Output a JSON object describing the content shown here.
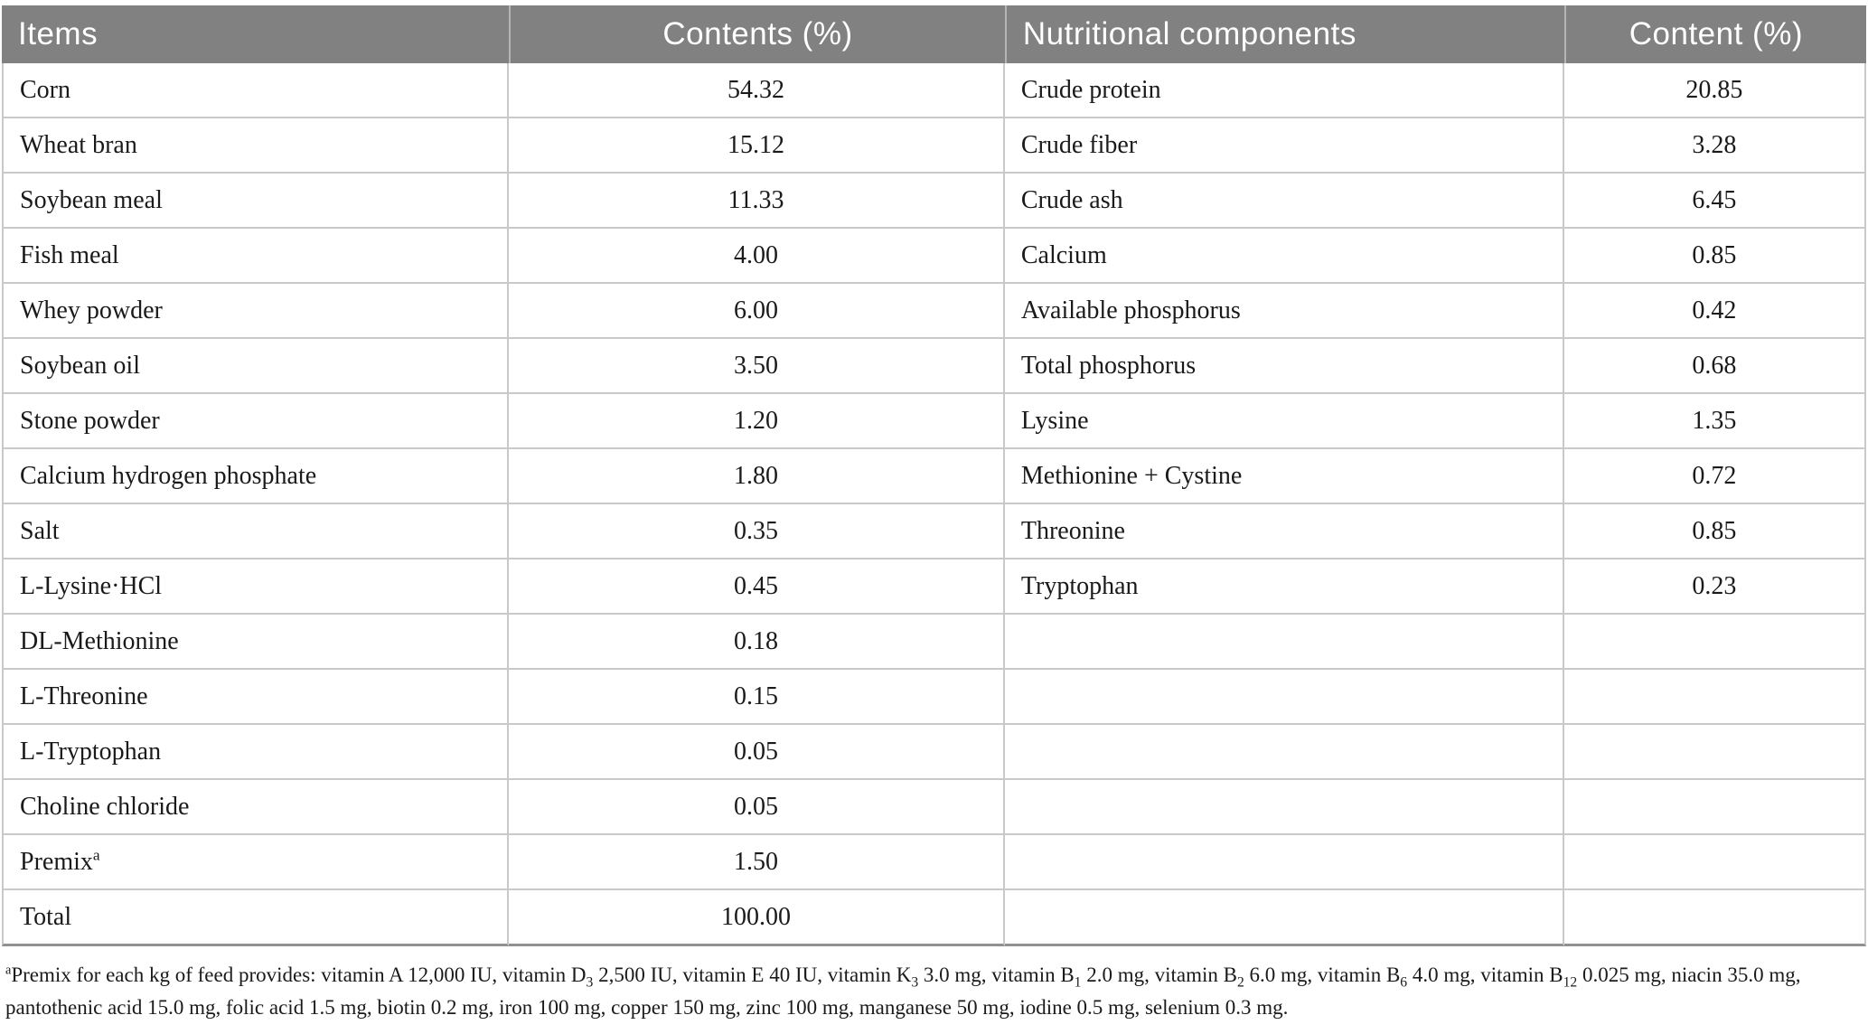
{
  "table": {
    "headers": [
      {
        "label": "Items"
      },
      {
        "label": "Contents (%)"
      },
      {
        "label": "Nutritional components"
      },
      {
        "label": "Content (%)"
      }
    ],
    "rows": [
      {
        "item": "Corn",
        "content_pct": "54.32",
        "nutrient": "Crude protein",
        "nutrient_pct": "20.85"
      },
      {
        "item": "Wheat bran",
        "content_pct": "15.12",
        "nutrient": "Crude fiber",
        "nutrient_pct": "3.28"
      },
      {
        "item": "Soybean meal",
        "content_pct": "11.33",
        "nutrient": "Crude ash",
        "nutrient_pct": "6.45"
      },
      {
        "item": "Fish meal",
        "content_pct": "4.00",
        "nutrient": "Calcium",
        "nutrient_pct": "0.85"
      },
      {
        "item": "Whey powder",
        "content_pct": "6.00",
        "nutrient": "Available phosphorus",
        "nutrient_pct": "0.42"
      },
      {
        "item": "Soybean oil",
        "content_pct": "3.50",
        "nutrient": "Total phosphorus",
        "nutrient_pct": "0.68"
      },
      {
        "item": "Stone powder",
        "content_pct": "1.20",
        "nutrient": "Lysine",
        "nutrient_pct": "1.35"
      },
      {
        "item": "Calcium hydrogen phosphate",
        "content_pct": "1.80",
        "nutrient": "Methionine + Cystine",
        "nutrient_pct": "0.72"
      },
      {
        "item": "Salt",
        "content_pct": "0.35",
        "nutrient": "Threonine",
        "nutrient_pct": "0.85"
      },
      {
        "item": "L-Lysine·HCl",
        "content_pct": "0.45",
        "nutrient": "Tryptophan",
        "nutrient_pct": "0.23"
      },
      {
        "item": "DL-Methionine",
        "content_pct": "0.18",
        "nutrient": "",
        "nutrient_pct": ""
      },
      {
        "item": "L-Threonine",
        "content_pct": "0.15",
        "nutrient": "",
        "nutrient_pct": ""
      },
      {
        "item": "L-Tryptophan",
        "content_pct": "0.05",
        "nutrient": "",
        "nutrient_pct": ""
      },
      {
        "item": "Choline chloride",
        "content_pct": "0.05",
        "nutrient": "",
        "nutrient_pct": ""
      },
      {
        "item": "Premix",
        "item_html": "Premix<sup>a</sup>",
        "content_pct": "1.50",
        "nutrient": "",
        "nutrient_pct": ""
      },
      {
        "item": "Total",
        "content_pct": "100.00",
        "nutrient": "",
        "nutrient_pct": ""
      }
    ],
    "footnote_html": "<sup>a</sup>Premix for each kg of feed provides: vitamin A 12,000 IU, vitamin D<sub>3</sub> 2,500 IU, vitamin E 40 IU, vitamin K<sub>3</sub> 3.0 mg, vitamin B<sub>1</sub> 2.0 mg, vitamin B<sub>2</sub> 6.0 mg, vitamin B<sub>6</sub> 4.0 mg, vitamin B<sub>12</sub> 0.025 mg, niacin 35.0 mg, pantothenic acid 15.0 mg, folic acid 1.5 mg, biotin 0.2 mg, iron 100 mg, copper 150 mg, zinc 100 mg, manganese 50 mg, iodine 0.5 mg, selenium 0.3 mg."
  },
  "colors": {
    "header_bg": "#818181",
    "header_text": "#ffffff",
    "header_divider": "#b5b5b5",
    "row_border": "#c9c9c9",
    "table_bottom_border": "#919191",
    "body_text": "#1a1a1a"
  }
}
